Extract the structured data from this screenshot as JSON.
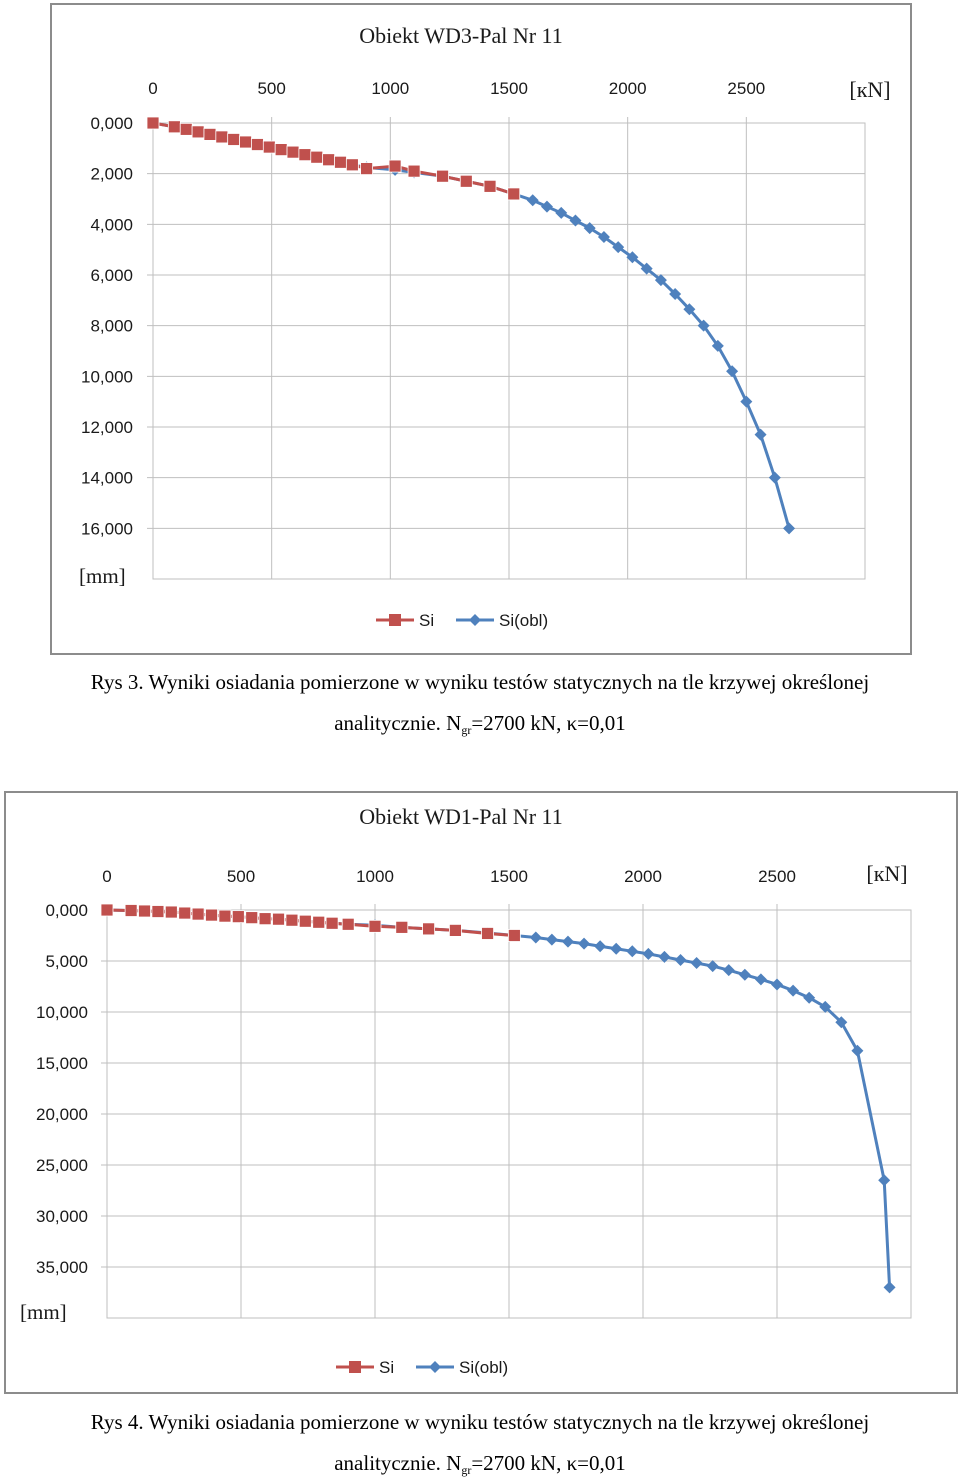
{
  "chart_data": [
    {
      "type": "line",
      "title": "Obiekt WD3-Pal Nr 11",
      "xlabel": "[кN]",
      "ylabel": "[mm]",
      "xlim": [
        0,
        3000
      ],
      "ylim": [
        0,
        18
      ],
      "y_inverted": true,
      "x_axis_position": "top",
      "x_ticks": [
        0,
        500,
        1000,
        1500,
        2000,
        2500
      ],
      "x_tick_labels": [
        "0",
        "500",
        "1000",
        "1500",
        "2000",
        "2500"
      ],
      "y_ticks": [
        0,
        2,
        4,
        6,
        8,
        10,
        12,
        14,
        16
      ],
      "y_tick_labels": [
        "0,000",
        "2,000",
        "4,000",
        "6,000",
        "8,000",
        "10,000",
        "12,000",
        "14,000",
        "16,000"
      ],
      "grid": true,
      "legend_position": "bottom",
      "series": [
        {
          "name": "Si",
          "color": "#c0504d",
          "marker": "square",
          "x": [
            0,
            90,
            140,
            190,
            240,
            290,
            340,
            390,
            440,
            490,
            540,
            590,
            640,
            690,
            740,
            790,
            840,
            900,
            1020,
            1100,
            1220,
            1320,
            1420,
            1520
          ],
          "y": [
            0,
            0.15,
            0.25,
            0.35,
            0.45,
            0.55,
            0.65,
            0.75,
            0.85,
            0.95,
            1.05,
            1.15,
            1.25,
            1.35,
            1.45,
            1.55,
            1.65,
            1.8,
            1.7,
            1.9,
            2.1,
            2.3,
            2.5,
            2.8
          ]
        },
        {
          "name": "Si(obl)",
          "color": "#4f81bd",
          "marker": "diamond",
          "x": [
            0,
            90,
            140,
            190,
            240,
            290,
            340,
            390,
            440,
            490,
            540,
            590,
            640,
            690,
            740,
            790,
            840,
            900,
            1020,
            1100,
            1220,
            1320,
            1420,
            1520,
            1600,
            1660,
            1720,
            1780,
            1840,
            1900,
            1960,
            2020,
            2080,
            2140,
            2200,
            2260,
            2320,
            2380,
            2440,
            2500,
            2560,
            2620,
            2680
          ],
          "y": [
            0,
            0.15,
            0.25,
            0.35,
            0.45,
            0.55,
            0.65,
            0.75,
            0.85,
            0.95,
            1.05,
            1.15,
            1.25,
            1.35,
            1.45,
            1.55,
            1.65,
            1.75,
            1.85,
            1.95,
            2.1,
            2.3,
            2.5,
            2.8,
            3.05,
            3.3,
            3.55,
            3.85,
            4.15,
            4.5,
            4.9,
            5.3,
            5.75,
            6.2,
            6.75,
            7.35,
            8.0,
            8.8,
            9.8,
            11.0,
            12.3,
            14.0,
            16.0
          ]
        }
      ]
    },
    {
      "type": "line",
      "title": "Obiekt WD1-Pal Nr 11",
      "xlabel": "[кN]",
      "ylabel": "[mm]",
      "xlim": [
        0,
        3000
      ],
      "ylim": [
        0,
        40
      ],
      "y_inverted": true,
      "x_axis_position": "top",
      "x_ticks": [
        0,
        500,
        1000,
        1500,
        2000,
        2500
      ],
      "x_tick_labels": [
        "0",
        "500",
        "1000",
        "1500",
        "2000",
        "2500"
      ],
      "y_ticks": [
        0,
        5,
        10,
        15,
        20,
        25,
        30,
        35
      ],
      "y_tick_labels": [
        "0,000",
        "5,000",
        "10,000",
        "15,000",
        "20,000",
        "25,000",
        "30,000",
        "35,000"
      ],
      "grid": true,
      "legend_position": "bottom",
      "series": [
        {
          "name": "Si",
          "color": "#c0504d",
          "marker": "square",
          "x": [
            0,
            90,
            140,
            190,
            240,
            290,
            340,
            390,
            440,
            490,
            540,
            590,
            640,
            690,
            740,
            790,
            840,
            900,
            1000,
            1100,
            1200,
            1300,
            1420,
            1520
          ],
          "y": [
            0,
            0.05,
            0.1,
            0.15,
            0.2,
            0.3,
            0.4,
            0.5,
            0.6,
            0.65,
            0.75,
            0.85,
            0.9,
            1.0,
            1.1,
            1.2,
            1.3,
            1.4,
            1.6,
            1.7,
            1.85,
            2.0,
            2.3,
            2.5
          ]
        },
        {
          "name": "Si(obl)",
          "color": "#4f81bd",
          "marker": "diamond",
          "x": [
            0,
            90,
            140,
            190,
            240,
            290,
            340,
            390,
            440,
            490,
            540,
            590,
            640,
            690,
            740,
            790,
            840,
            900,
            1000,
            1100,
            1200,
            1300,
            1420,
            1520,
            1600,
            1660,
            1720,
            1780,
            1840,
            1900,
            1960,
            2020,
            2080,
            2140,
            2200,
            2260,
            2320,
            2380,
            2440,
            2500,
            2560,
            2620,
            2680,
            2740,
            2800,
            2900,
            2920
          ],
          "y": [
            0,
            0.05,
            0.1,
            0.15,
            0.2,
            0.3,
            0.4,
            0.5,
            0.6,
            0.65,
            0.75,
            0.85,
            0.9,
            1.0,
            1.1,
            1.2,
            1.3,
            1.4,
            1.5,
            1.7,
            1.85,
            2.0,
            2.25,
            2.5,
            2.7,
            2.9,
            3.1,
            3.3,
            3.55,
            3.8,
            4.05,
            4.3,
            4.6,
            4.9,
            5.2,
            5.5,
            5.9,
            6.35,
            6.8,
            7.3,
            7.9,
            8.6,
            9.5,
            11.0,
            13.8,
            26.5,
            37.0
          ]
        }
      ]
    }
  ],
  "captions": [
    {
      "line1": "Rys 3. Wyniki osiadania pomierzone w wyniku testów statycznych na tle krzywej określonej",
      "line2_pre": "analitycznie. N",
      "line2_sub": "gr",
      "line2_post": "=2700 kN, κ=0,01"
    },
    {
      "line1": "Rys 4. Wyniki osiadania pomierzone w wyniku testów statycznych na tle krzywej określonej",
      "line2_pre": "analitycznie. N",
      "line2_sub": "gr",
      "line2_post": "=2700 kN, κ=0,01"
    }
  ]
}
